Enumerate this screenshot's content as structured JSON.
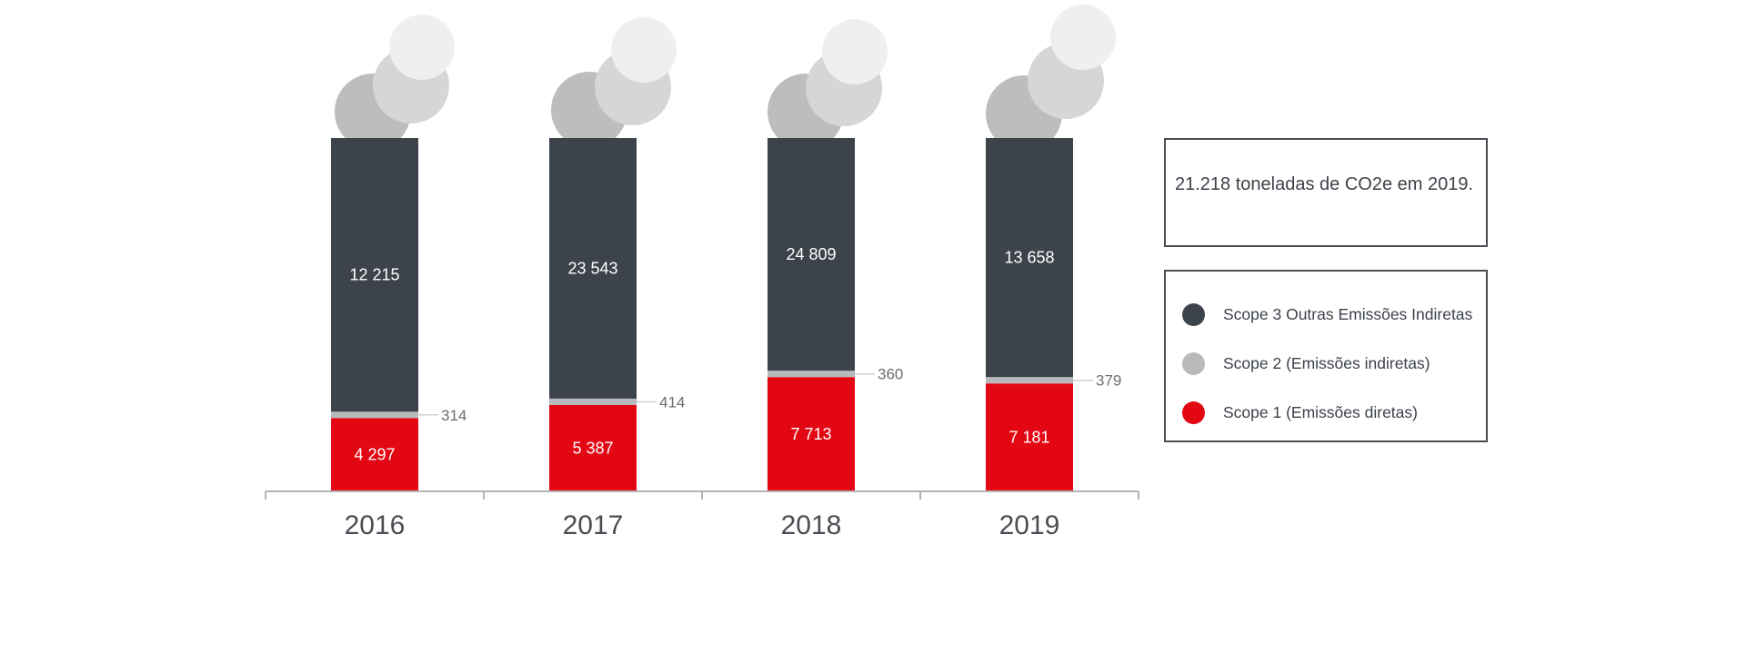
{
  "chart_data": {
    "type": "bar",
    "stacked": true,
    "categories": [
      "2016",
      "2017",
      "2018",
      "2019"
    ],
    "series": [
      {
        "name": "Scope 1 (Emissões diretas)",
        "values": [
          4297,
          5387,
          7713,
          7181
        ],
        "labels": [
          "4 297",
          "5 387",
          "7 713",
          "7 181"
        ],
        "color": "#e30613"
      },
      {
        "name": "Scope 2 (Emissões indiretas)",
        "values": [
          314,
          414,
          360,
          379
        ],
        "labels": [
          "314",
          "414",
          "360",
          "379"
        ],
        "color": "#b8b9bb"
      },
      {
        "name": "Scope 3 Outras Emissões Indiretas",
        "values": [
          12215,
          23543,
          24809,
          13658
        ],
        "labels": [
          "12 215",
          "23 543",
          "24 809",
          "13 658"
        ],
        "color": "#3d434b"
      }
    ],
    "annotation": "21.218 toneladas de CO2e em 2019.",
    "legend_position": "right",
    "grid": false
  },
  "colors": {
    "smoke_dark": "#bdbdbd",
    "smoke_mid": "#d6d6d6",
    "smoke_light": "#efefef",
    "axis": "#b3b3b3"
  }
}
